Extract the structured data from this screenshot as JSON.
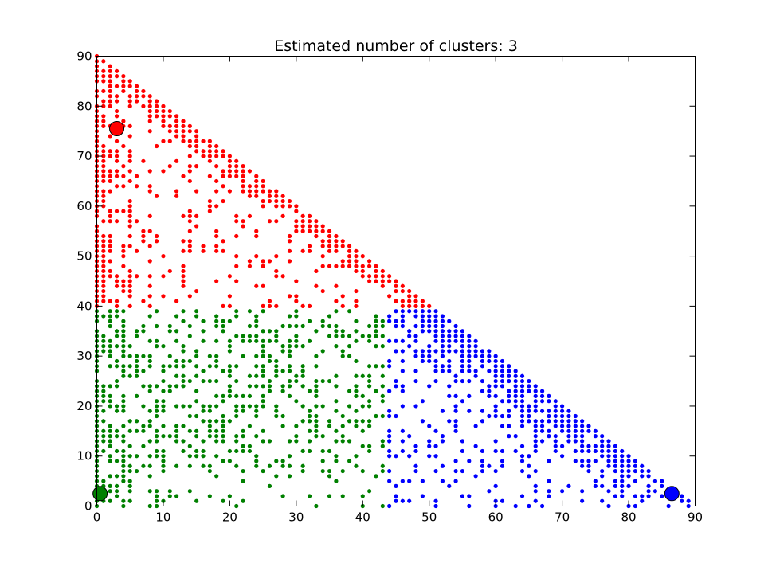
{
  "chart_data": {
    "type": "scatter",
    "title": "Estimated number of clusters: 3",
    "xlabel": "",
    "ylabel": "",
    "xlim": [
      0,
      90
    ],
    "ylim": [
      0,
      90
    ],
    "x_ticks": [
      0,
      10,
      20,
      30,
      40,
      50,
      60,
      70,
      80,
      90
    ],
    "y_ticks": [
      0,
      10,
      20,
      30,
      40,
      50,
      60,
      70,
      80,
      90
    ],
    "grid": false,
    "legend": "none",
    "region_constraint": "x + y <= 90",
    "series": [
      {
        "color": "#ff0000",
        "region": "y >= 40",
        "density_profile": "dense near the diagonal edge and the y-axis, sparse in the interior",
        "center": [
          3,
          75.5
        ]
      },
      {
        "color": "#008000",
        "region": "y < 40 and x < 44",
        "density_profile": "moderately dense throughout, denser toward the left edge",
        "center": [
          0.5,
          2.5
        ]
      },
      {
        "color": "#0000ff",
        "region": "y < 40 and x >= 44",
        "density_profile": "very dense near the diagonal edge, sparse near the x-axis interior",
        "center": [
          86.5,
          2.5
        ]
      }
    ]
  }
}
